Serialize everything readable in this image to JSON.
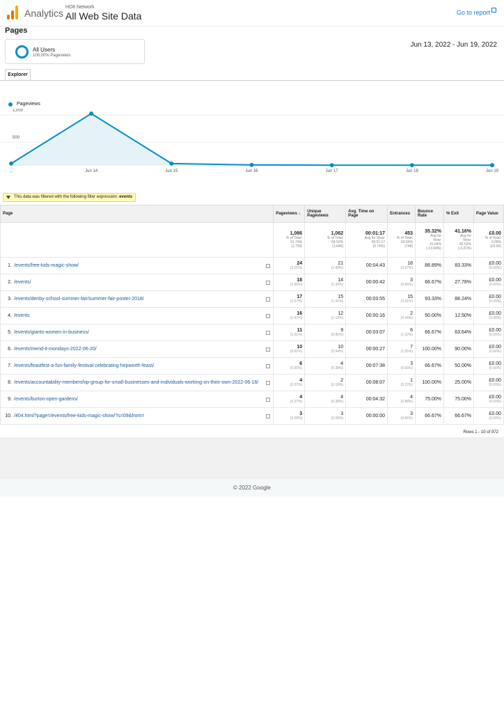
{
  "header": {
    "brand": "Analytics",
    "account": "HD8 Network",
    "property": "All Web Site Data",
    "goto_report": "Go to report"
  },
  "page_title": "Pages",
  "segment": {
    "name": "All Users",
    "sub": "100.00% Pageviews"
  },
  "date_range": "Jun 13, 2022 - Jun 19, 2022",
  "tab": "Explorer",
  "chart_data": {
    "type": "area",
    "series": [
      {
        "name": "Pageviews",
        "values": [
          40,
          960,
          40,
          15,
          10,
          10,
          10
        ]
      }
    ],
    "x_labels": [
      "...",
      "Jun 14",
      "Jun 15",
      "Jun 16",
      "Jun 17",
      "Jun 18",
      "Jun 19"
    ],
    "y_ticks": [
      "1,000",
      "500"
    ],
    "ylim": [
      0,
      1000
    ],
    "colors": {
      "line": "#058dc7",
      "fill": "#e5f2f8"
    }
  },
  "filter": {
    "text": "This data was filtered with the following filter expression:",
    "expr": "events"
  },
  "columns": [
    "Page",
    "Pageviews",
    "Unique Pageviews",
    "Avg. Time on Page",
    "Entrances",
    "Bounce Rate",
    "% Exit",
    "Page Value"
  ],
  "totals": {
    "pageviews": [
      "1,086",
      "% of Total:",
      "61.74%",
      "(1,759)"
    ],
    "unique": [
      "1,062",
      "% of Total:",
      "64.52%",
      "(1,646)"
    ],
    "avgtime": [
      "00:01:17",
      "Avg for View:",
      "00:01:17",
      "(0.74%)"
    ],
    "entrances": [
      "453",
      "% of Total:",
      "60.56%",
      "(748)"
    ],
    "bounce": [
      "35.32%",
      "Avg for",
      "View:",
      "41.04%",
      "(-13.94%)"
    ],
    "exit": [
      "41.16%",
      "Avg for",
      "View:",
      "42.52%",
      "(-3.21%)"
    ],
    "value": [
      "£0.00",
      "% of Total:",
      "0.00%",
      "(£0.00)"
    ]
  },
  "rows": [
    {
      "n": "1.",
      "page": "/events/free-kids-magic-show/",
      "pv": "24",
      "pvp": "(2.21%)",
      "up": "21",
      "upp": "(1.98%)",
      "t": "00:04:43",
      "e": "18",
      "ep": "(3.97%)",
      "b": "88.89%",
      "x": "83.33%",
      "v": "£0.00",
      "vp": "(0.00%)"
    },
    {
      "n": "2.",
      "page": "/events/",
      "pv": "18",
      "pvp": "(1.66%)",
      "up": "14",
      "upp": "(1.32%)",
      "t": "00:00:42",
      "e": "3",
      "ep": "(0.66%)",
      "b": "66.67%",
      "x": "27.78%",
      "v": "£0.00",
      "vp": "(0.00%)"
    },
    {
      "n": "3.",
      "page": "/events/denby-school-summer-fair/summer-fair-poster-2018/",
      "pv": "17",
      "pvp": "(1.57%)",
      "up": "15",
      "upp": "(1.41%)",
      "t": "00:03:55",
      "e": "15",
      "ep": "(3.31%)",
      "b": "93.33%",
      "x": "88.24%",
      "v": "£0.00",
      "vp": "(0.00%)"
    },
    {
      "n": "4.",
      "page": "/events",
      "pv": "16",
      "pvp": "(1.47%)",
      "up": "12",
      "upp": "(1.13%)",
      "t": "00:00:16",
      "e": "2",
      "ep": "(0.44%)",
      "b": "50.00%",
      "x": "12.50%",
      "v": "£0.00",
      "vp": "(0.00%)"
    },
    {
      "n": "5.",
      "page": "/events/giants-women-in-business/",
      "pv": "11",
      "pvp": "(1.01%)",
      "up": "9",
      "upp": "(0.85%)",
      "t": "00:03:07",
      "e": "6",
      "ep": "(1.32%)",
      "b": "66.67%",
      "x": "63.64%",
      "v": "£0.00",
      "vp": "(0.00%)"
    },
    {
      "n": "6.",
      "page": "/events/mend-it-mondays-2022-06-20/",
      "pv": "10",
      "pvp": "(0.92%)",
      "up": "10",
      "upp": "(0.94%)",
      "t": "00:00:27",
      "e": "7",
      "ep": "(1.55%)",
      "b": "100.00%",
      "x": "90.00%",
      "v": "£0.00",
      "vp": "(0.00%)"
    },
    {
      "n": "7.",
      "page": "/events/feastfest-a-fun-family-festival-celebrating-hepworth-feast/",
      "pv": "6",
      "pvp": "(0.55%)",
      "up": "4",
      "upp": "(0.38%)",
      "t": "00:07:38",
      "e": "3",
      "ep": "(0.66%)",
      "b": "66.67%",
      "x": "50.00%",
      "v": "£0.00",
      "vp": "(0.00%)"
    },
    {
      "n": "8.",
      "page": "/events/accountability-membership-group-for-small-businesses-and-individuals-working-on-their-own-2022-06-16/",
      "pv": "4",
      "pvp": "(0.37%)",
      "up": "2",
      "upp": "(0.19%)",
      "t": "00:08:07",
      "e": "1",
      "ep": "(0.22%)",
      "b": "100.00%",
      "x": "25.00%",
      "v": "£0.00",
      "vp": "(0.00%)"
    },
    {
      "n": "9.",
      "page": "/events/burton-open-gardens/",
      "pv": "4",
      "pvp": "(0.37%)",
      "up": "4",
      "upp": "(0.38%)",
      "t": "00:04:32",
      "e": "4",
      "ep": "(0.88%)",
      "b": "75.00%",
      "x": "75.00%",
      "v": "£0.00",
      "vp": "(0.00%)"
    },
    {
      "n": "10.",
      "page": "/404.html?page=/events/free-kids-magic-show/?s=09&from=",
      "pv": "3",
      "pvp": "(0.28%)",
      "up": "3",
      "upp": "(0.28%)",
      "t": "00:00:00",
      "e": "3",
      "ep": "(0.66%)",
      "b": "66.67%",
      "x": "66.67%",
      "v": "£0.00",
      "vp": "(0.00%)"
    }
  ],
  "rows_info": "Rows 1 - 10 of 972",
  "footer": "© 2022 Google"
}
